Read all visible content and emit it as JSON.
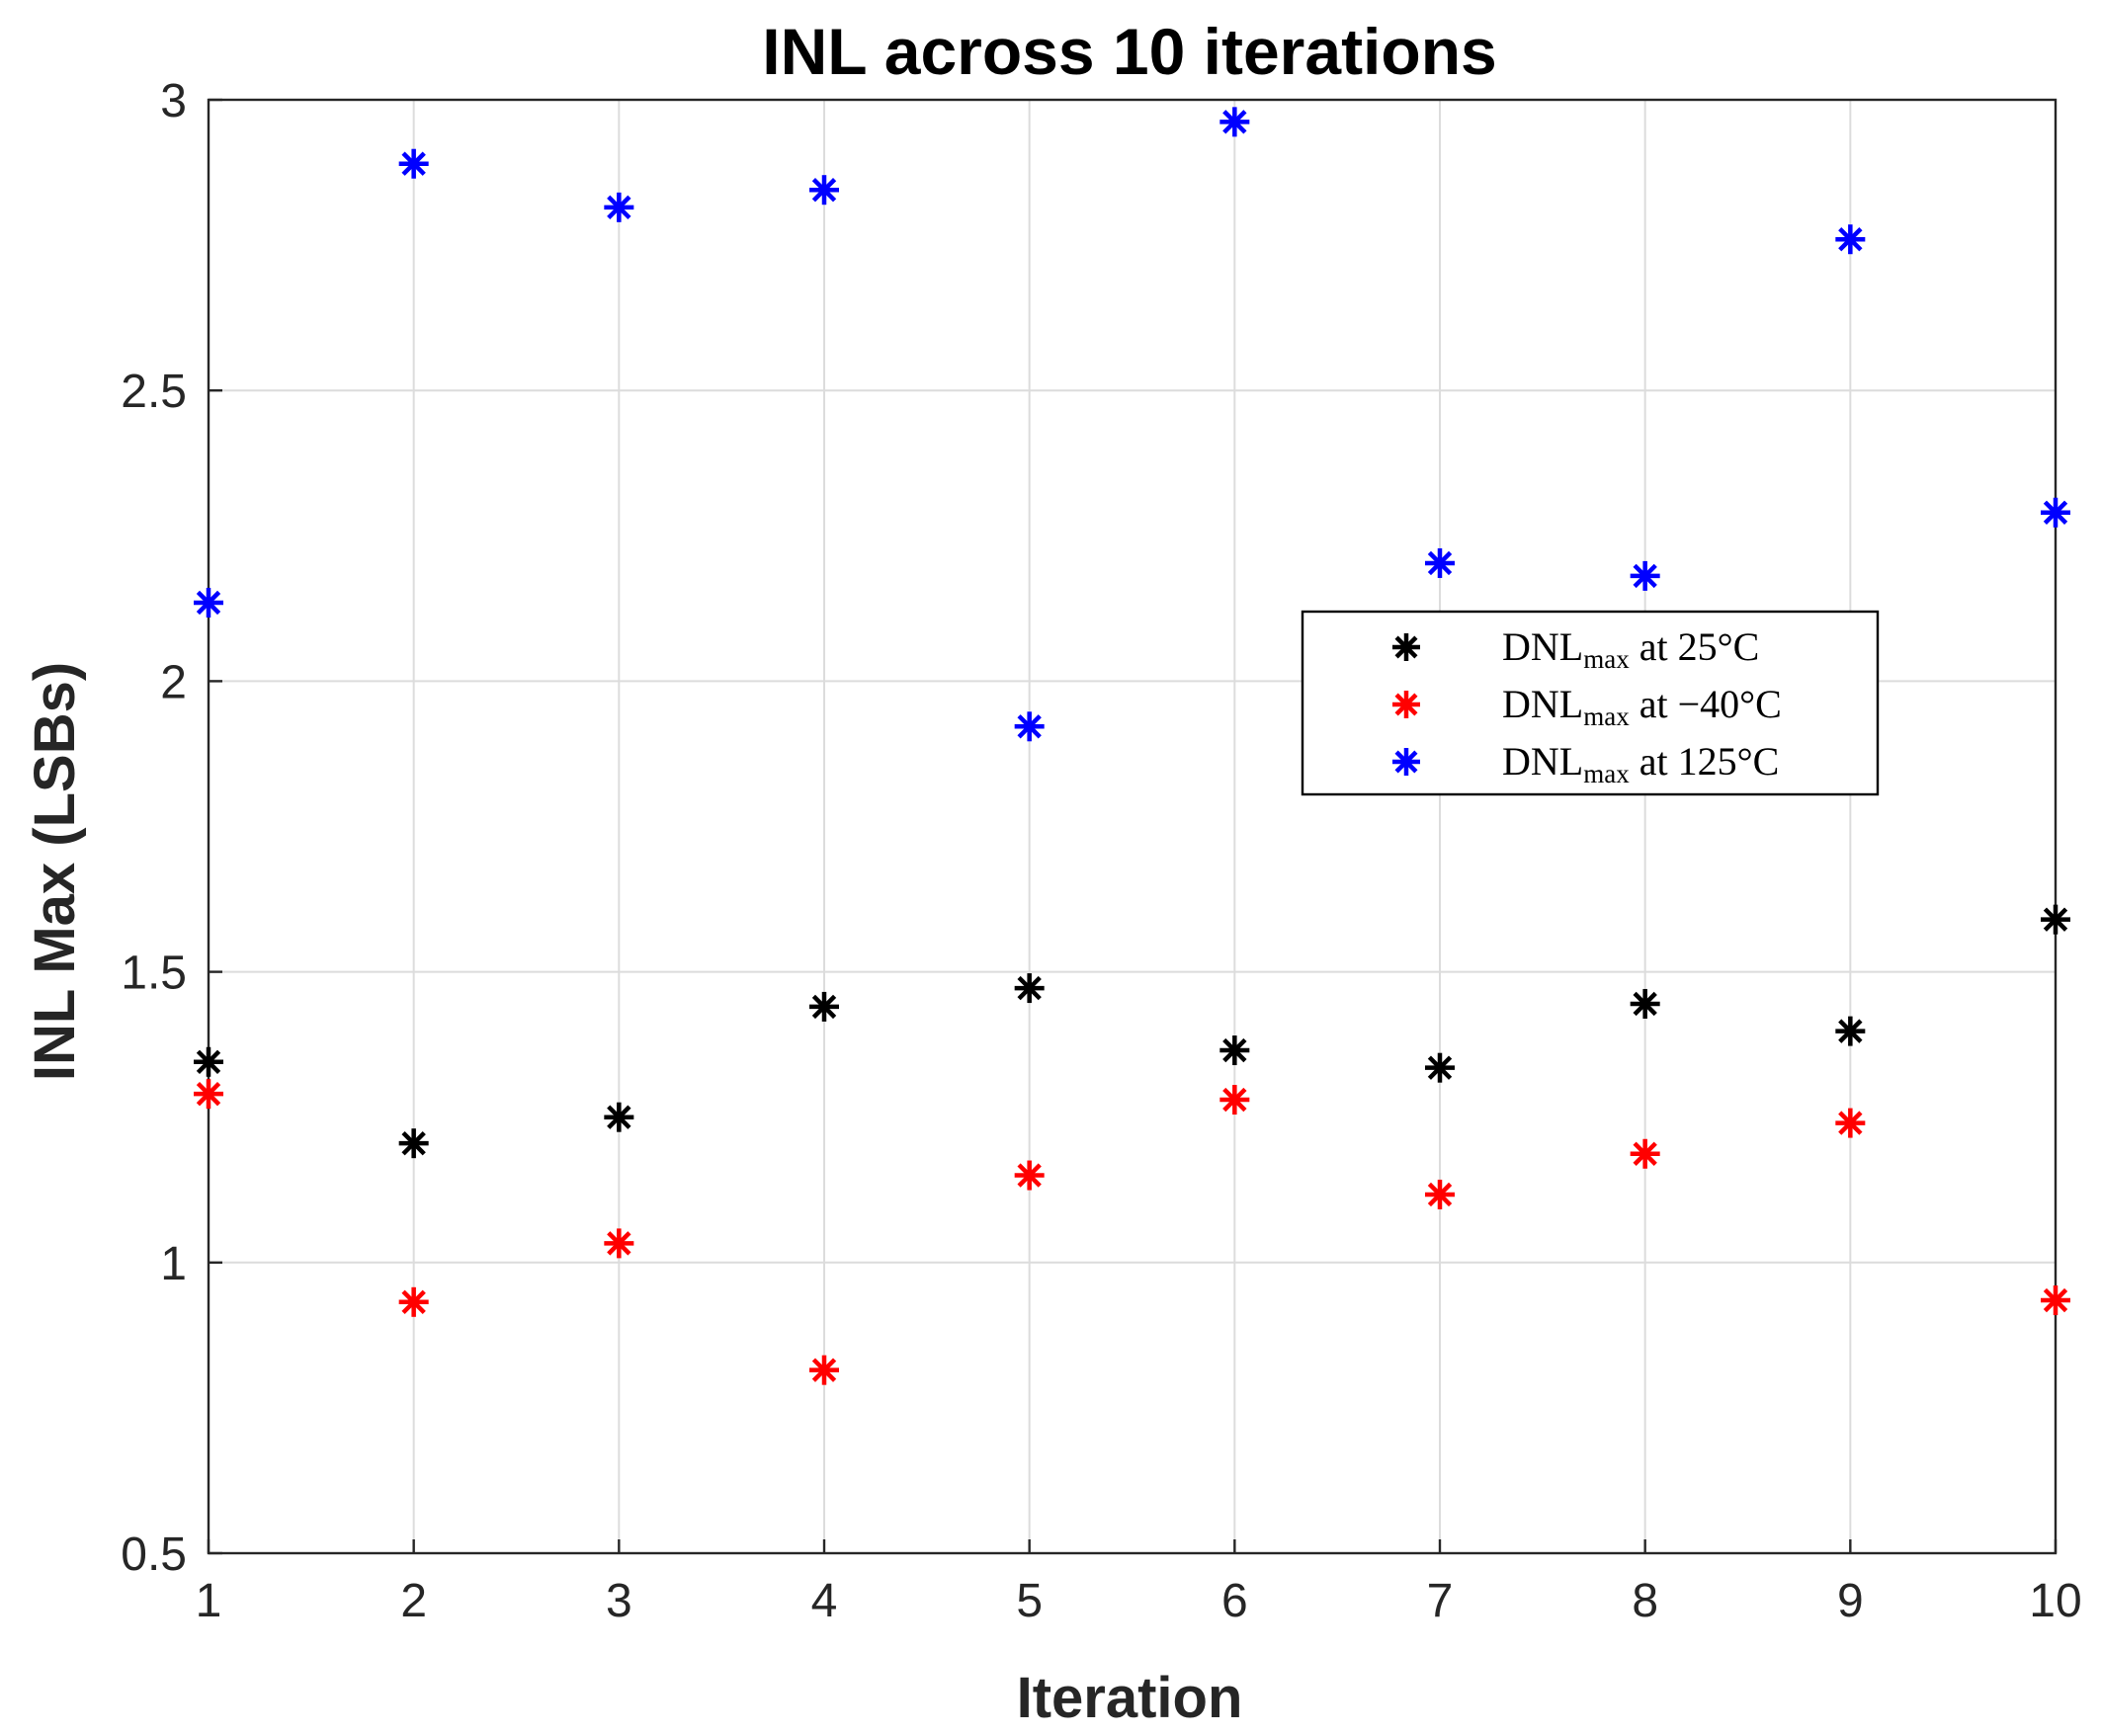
{
  "chart_data": {
    "type": "scatter",
    "title": "INL across 10 iterations",
    "xlabel": "Iteration",
    "ylabel": "INL Max (LSBs)",
    "xlim": [
      1,
      10
    ],
    "ylim": [
      0.5,
      3
    ],
    "xticks": [
      "1",
      "2",
      "3",
      "4",
      "5",
      "6",
      "7",
      "8",
      "9",
      "10"
    ],
    "yticks": [
      "0.5",
      "1",
      "1.5",
      "2",
      "2.5",
      "3"
    ],
    "grid": true,
    "legend_position": "right",
    "marker": "asterisk",
    "x": [
      1,
      2,
      3,
      4,
      5,
      6,
      7,
      8,
      9,
      10
    ],
    "series": [
      {
        "name": "DNL",
        "name_sub": "max",
        "name_suffix": " at 25°C",
        "color": "#000000",
        "values": [
          1.345,
          1.205,
          1.25,
          1.44,
          1.472,
          1.365,
          1.335,
          1.445,
          1.398,
          1.59
        ]
      },
      {
        "name": "DNL",
        "name_sub": "max",
        "name_suffix": " at −40°C",
        "color": "#ff0000",
        "values": [
          1.29,
          0.932,
          1.033,
          0.815,
          1.15,
          1.28,
          1.117,
          1.187,
          1.24,
          0.935
        ]
      },
      {
        "name": "DNL",
        "name_sub": "max",
        "name_suffix": " at 125°C",
        "color": "#0000ff",
        "values": [
          2.135,
          2.89,
          2.815,
          2.845,
          1.922,
          2.962,
          2.203,
          2.181,
          2.76,
          2.29
        ]
      }
    ]
  }
}
